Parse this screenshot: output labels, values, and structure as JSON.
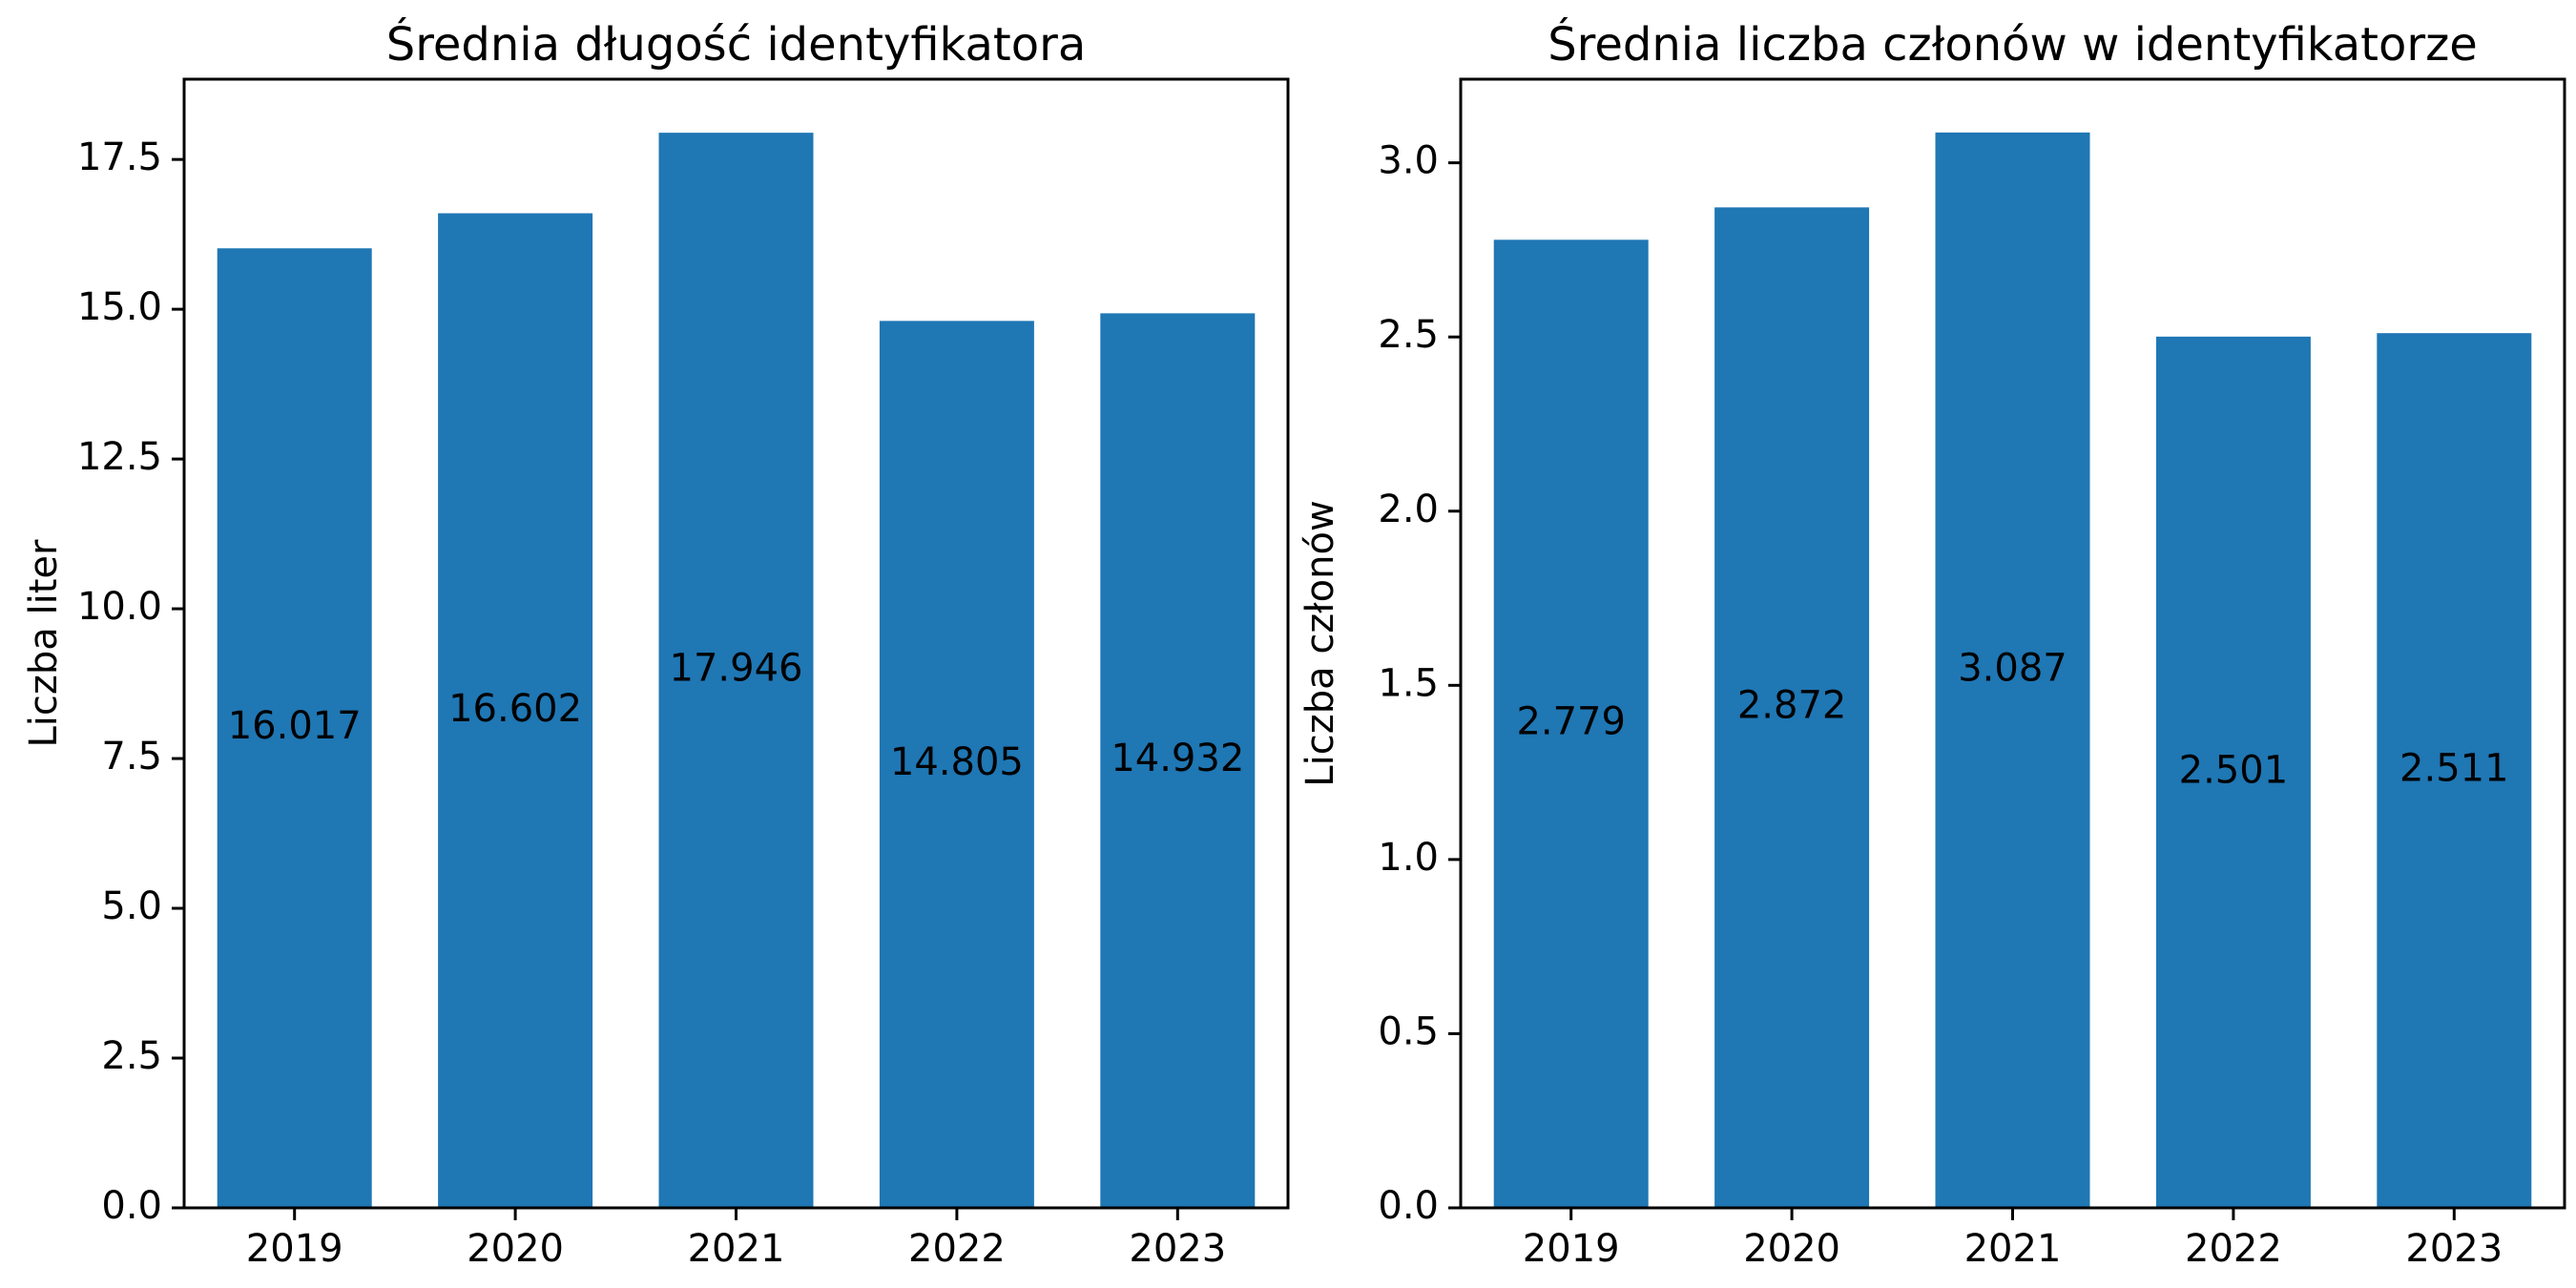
{
  "chart_data": [
    {
      "type": "bar",
      "title": "Średnia długość identyfikatora",
      "xlabel": "",
      "ylabel": "Liczba liter",
      "categories": [
        "2019",
        "2020",
        "2021",
        "2022",
        "2023"
      ],
      "values": [
        16.017,
        16.602,
        17.946,
        14.805,
        14.932
      ],
      "value_labels": [
        "16.017",
        "16.602",
        "17.946",
        "14.805",
        "14.932"
      ],
      "ylim": [
        0,
        18.84
      ],
      "yticks": [
        0,
        2.5,
        5,
        7.5,
        10,
        12.5,
        15,
        17.5
      ],
      "ytick_labels": [
        "0.0",
        "2.5",
        "5.0",
        "7.5",
        "10.0",
        "12.5",
        "15.0",
        "17.5"
      ],
      "grid": false,
      "bar_color": "#1f77b4"
    },
    {
      "type": "bar",
      "title": "Średnia liczba członów w identyfikatorze",
      "xlabel": "",
      "ylabel": "Liczba członów",
      "categories": [
        "2019",
        "2020",
        "2021",
        "2022",
        "2023"
      ],
      "values": [
        2.779,
        2.872,
        3.087,
        2.501,
        2.511
      ],
      "value_labels": [
        "2.779",
        "2.872",
        "3.087",
        "2.501",
        "2.511"
      ],
      "ylim": [
        0,
        3.24
      ],
      "yticks": [
        0,
        0.5,
        1,
        1.5,
        2,
        2.5,
        3
      ],
      "ytick_labels": [
        "0.0",
        "0.5",
        "1.0",
        "1.5",
        "2.0",
        "2.5",
        "3.0"
      ],
      "grid": false,
      "bar_color": "#1f77b4"
    }
  ]
}
